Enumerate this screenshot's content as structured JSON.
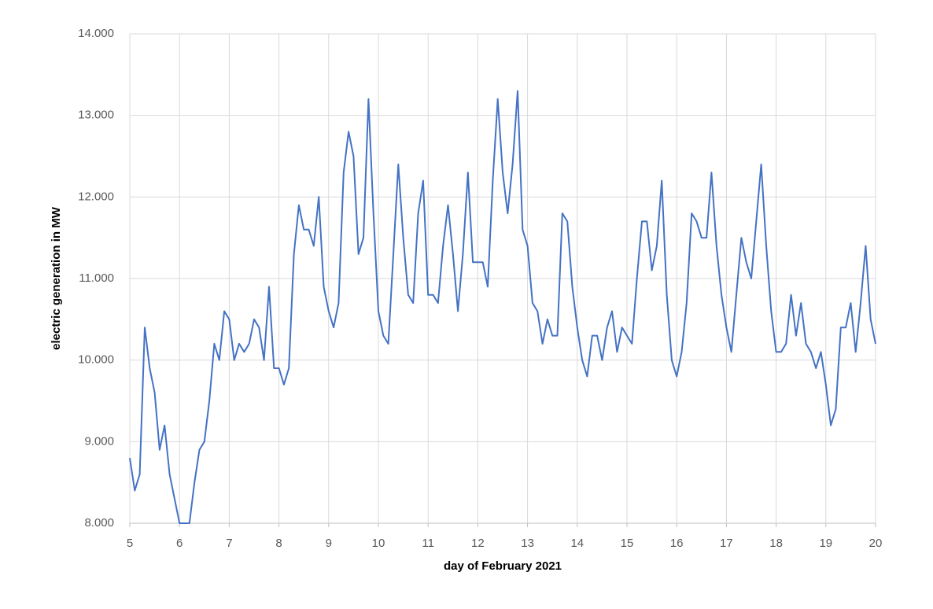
{
  "chart_data": {
    "type": "line",
    "xlabel": "day of February 2021",
    "ylabel": "electric generation in MW",
    "xlim": [
      5,
      20
    ],
    "xticks": [
      5,
      6,
      7,
      8,
      9,
      10,
      11,
      12,
      13,
      14,
      15,
      16,
      17,
      18,
      19,
      20
    ],
    "ylim": [
      8000,
      14000
    ],
    "yticks": [
      {
        "value": 8000,
        "label": "8.000"
      },
      {
        "value": 9000,
        "label": "9.000"
      },
      {
        "value": 10000,
        "label": "10.000"
      },
      {
        "value": 11000,
        "label": "11.000"
      },
      {
        "value": 12000,
        "label": "12.000"
      },
      {
        "value": 13000,
        "label": "13.000"
      },
      {
        "value": 14000,
        "label": "14.000"
      }
    ],
    "grid": true,
    "x": [
      5.0,
      5.1,
      5.2,
      5.3,
      5.4,
      5.5,
      5.6,
      5.7,
      5.8,
      5.9,
      6.0,
      6.1,
      6.2,
      6.3,
      6.4,
      6.5,
      6.6,
      6.7,
      6.8,
      6.9,
      7.0,
      7.1,
      7.2,
      7.3,
      7.4,
      7.5,
      7.6,
      7.7,
      7.8,
      7.9,
      8.0,
      8.1,
      8.2,
      8.3,
      8.4,
      8.5,
      8.6,
      8.7,
      8.8,
      8.9,
      9.0,
      9.1,
      9.2,
      9.3,
      9.4,
      9.5,
      9.6,
      9.7,
      9.8,
      9.9,
      10.0,
      10.1,
      10.2,
      10.3,
      10.4,
      10.5,
      10.6,
      10.7,
      10.8,
      10.9,
      11.0,
      11.1,
      11.2,
      11.3,
      11.4,
      11.5,
      11.6,
      11.7,
      11.8,
      11.9,
      12.0,
      12.1,
      12.2,
      12.3,
      12.4,
      12.5,
      12.6,
      12.7,
      12.8,
      12.9,
      13.0,
      13.1,
      13.2,
      13.3,
      13.4,
      13.5,
      13.6,
      13.7,
      13.8,
      13.9,
      14.0,
      14.1,
      14.2,
      14.3,
      14.4,
      14.5,
      14.6,
      14.7,
      14.8,
      14.9,
      15.0,
      15.1,
      15.2,
      15.3,
      15.4,
      15.5,
      15.6,
      15.7,
      15.8,
      15.9,
      16.0,
      16.1,
      16.2,
      16.3,
      16.4,
      16.5,
      16.6,
      16.7,
      16.8,
      16.9,
      17.0,
      17.1,
      17.2,
      17.3,
      17.4,
      17.5,
      17.6,
      17.7,
      17.8,
      17.9,
      18.0,
      18.1,
      18.2,
      18.3,
      18.4,
      18.5,
      18.6,
      18.7,
      18.8,
      18.9,
      19.0,
      19.1,
      19.2,
      19.3,
      19.4,
      19.5,
      19.6,
      19.7,
      19.8,
      19.9,
      20.0
    ],
    "series": [
      {
        "color": "#4472c4",
        "values": [
          8800,
          8400,
          8600,
          10400,
          9900,
          9600,
          8900,
          9200,
          8600,
          8300,
          8000,
          8000,
          8000,
          8500,
          8900,
          9000,
          9500,
          10200,
          10000,
          10600,
          10500,
          10000,
          10200,
          10100,
          10200,
          10500,
          10400,
          10000,
          10900,
          9900,
          9900,
          9700,
          9900,
          11300,
          11900,
          11600,
          11600,
          11400,
          12000,
          10900,
          10600,
          10400,
          10700,
          12300,
          12800,
          12500,
          11300,
          11500,
          13200,
          11800,
          10600,
          10300,
          10200,
          11300,
          12400,
          11500,
          10800,
          10700,
          11800,
          12200,
          10800,
          10800,
          10700,
          11400,
          11900,
          11300,
          10600,
          11300,
          12300,
          11200,
          11200,
          11200,
          10900,
          12200,
          13200,
          12300,
          11800,
          12400,
          13300,
          11600,
          11400,
          10700,
          10600,
          10200,
          10500,
          10300,
          10300,
          11800,
          11700,
          10900,
          10400,
          10000,
          9800,
          10300,
          10300,
          10000,
          10400,
          10600,
          10100,
          10400,
          10300,
          10200,
          11000,
          11700,
          11700,
          11100,
          11400,
          12200,
          10800,
          10000,
          9800,
          10100,
          10700,
          11800,
          11700,
          11500,
          11500,
          12300,
          11400,
          10800,
          10400,
          10100,
          10800,
          11500,
          11200,
          11000,
          11700,
          12400,
          11400,
          10600,
          10100,
          10100,
          10200,
          10800,
          10300,
          10700,
          10200,
          10100,
          9900,
          10100,
          9700,
          9200,
          9400,
          10400,
          10400,
          10700,
          10100,
          10700,
          11400,
          10500,
          10200
        ]
      }
    ]
  }
}
